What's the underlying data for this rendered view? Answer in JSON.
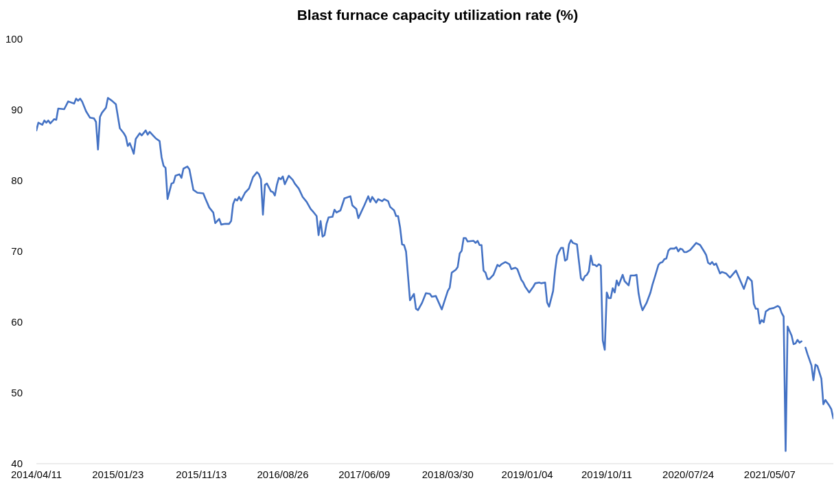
{
  "chart_data": {
    "type": "line",
    "title": "Blast furnace capacity utilization rate (%)",
    "x": [
      "2014-04-11",
      "2014-04-18",
      "2014-05-02",
      "2014-05-09",
      "2014-05-16",
      "2014-05-23",
      "2014-05-30",
      "2014-06-13",
      "2014-06-20",
      "2014-06-27",
      "2014-07-18",
      "2014-08-01",
      "2014-08-22",
      "2014-08-29",
      "2014-09-05",
      "2014-09-12",
      "2014-09-19",
      "2014-10-03",
      "2014-10-17",
      "2014-10-31",
      "2014-11-07",
      "2014-11-14",
      "2014-11-21",
      "2014-11-28",
      "2014-12-12",
      "2014-12-19",
      "2015-01-02",
      "2015-01-16",
      "2015-01-30",
      "2015-02-13",
      "2015-02-20",
      "2015-02-27",
      "2015-03-06",
      "2015-03-13",
      "2015-03-20",
      "2015-03-27",
      "2015-04-10",
      "2015-04-17",
      "2015-05-01",
      "2015-05-08",
      "2015-05-15",
      "2015-05-29",
      "2015-06-05",
      "2015-06-19",
      "2015-06-26",
      "2015-07-03",
      "2015-07-10",
      "2015-07-17",
      "2015-07-31",
      "2015-08-07",
      "2015-08-14",
      "2015-08-28",
      "2015-09-04",
      "2015-09-11",
      "2015-09-25",
      "2015-10-02",
      "2015-10-16",
      "2015-10-30",
      "2015-11-20",
      "2015-11-27",
      "2015-12-11",
      "2015-12-25",
      "2016-01-01",
      "2016-01-15",
      "2016-01-22",
      "2016-02-05",
      "2016-02-19",
      "2016-02-26",
      "2016-03-04",
      "2016-03-11",
      "2016-03-18",
      "2016-03-25",
      "2016-04-01",
      "2016-04-15",
      "2016-04-29",
      "2016-05-13",
      "2016-05-27",
      "2016-06-03",
      "2016-06-10",
      "2016-06-17",
      "2016-06-24",
      "2016-07-01",
      "2016-07-15",
      "2016-07-22",
      "2016-07-29",
      "2016-08-05",
      "2016-08-12",
      "2016-08-19",
      "2016-08-26",
      "2016-09-02",
      "2016-09-16",
      "2016-09-30",
      "2016-10-07",
      "2016-10-21",
      "2016-11-04",
      "2016-11-18",
      "2016-12-02",
      "2016-12-09",
      "2016-12-23",
      "2016-12-30",
      "2017-01-06",
      "2017-01-13",
      "2017-01-20",
      "2017-01-27",
      "2017-02-03",
      "2017-02-17",
      "2017-02-24",
      "2017-03-03",
      "2017-03-17",
      "2017-03-31",
      "2017-04-21",
      "2017-04-28",
      "2017-05-12",
      "2017-05-19",
      "2017-06-09",
      "2017-06-23",
      "2017-06-30",
      "2017-07-07",
      "2017-07-21",
      "2017-07-28",
      "2017-08-11",
      "2017-08-18",
      "2017-09-01",
      "2017-09-08",
      "2017-09-22",
      "2017-09-29",
      "2017-10-06",
      "2017-10-13",
      "2017-10-20",
      "2017-10-27",
      "2017-11-03",
      "2017-11-17",
      "2017-12-01",
      "2017-12-08",
      "2017-12-15",
      "2017-12-29",
      "2018-01-12",
      "2018-01-26",
      "2018-02-02",
      "2018-02-16",
      "2018-03-09",
      "2018-03-30",
      "2018-04-06",
      "2018-04-13",
      "2018-04-27",
      "2018-05-04",
      "2018-05-11",
      "2018-05-18",
      "2018-05-25",
      "2018-06-01",
      "2018-06-08",
      "2018-06-29",
      "2018-07-06",
      "2018-07-13",
      "2018-07-20",
      "2018-07-27",
      "2018-08-03",
      "2018-08-10",
      "2018-08-17",
      "2018-08-24",
      "2018-09-07",
      "2018-09-21",
      "2018-09-28",
      "2018-10-05",
      "2018-10-19",
      "2018-11-02",
      "2018-11-09",
      "2018-11-23",
      "2018-11-30",
      "2018-12-14",
      "2018-12-21",
      "2018-12-28",
      "2019-01-11",
      "2019-01-25",
      "2019-02-01",
      "2019-02-15",
      "2019-02-22",
      "2019-03-08",
      "2019-03-15",
      "2019-03-22",
      "2019-04-05",
      "2019-04-12",
      "2019-04-19",
      "2019-04-26",
      "2019-05-03",
      "2019-05-10",
      "2019-05-17",
      "2019-05-24",
      "2019-05-31",
      "2019-06-07",
      "2019-06-14",
      "2019-06-28",
      "2019-07-12",
      "2019-07-19",
      "2019-07-26",
      "2019-08-02",
      "2019-08-09",
      "2019-08-16",
      "2019-08-23",
      "2019-08-30",
      "2019-09-06",
      "2019-09-13",
      "2019-09-20",
      "2019-09-27",
      "2019-10-04",
      "2019-10-11",
      "2019-10-18",
      "2019-10-25",
      "2019-11-01",
      "2019-11-08",
      "2019-11-15",
      "2019-11-22",
      "2019-12-06",
      "2019-12-13",
      "2019-12-27",
      "2020-01-03",
      "2020-01-17",
      "2020-01-24",
      "2020-01-31",
      "2020-02-07",
      "2020-02-14",
      "2020-02-28",
      "2020-03-13",
      "2020-03-20",
      "2020-03-27",
      "2020-04-10",
      "2020-04-17",
      "2020-04-24",
      "2020-05-01",
      "2020-05-08",
      "2020-05-15",
      "2020-05-22",
      "2020-06-05",
      "2020-06-12",
      "2020-06-19",
      "2020-06-26",
      "2020-07-03",
      "2020-07-10",
      "2020-07-17",
      "2020-07-31",
      "2020-08-21",
      "2020-09-04",
      "2020-09-18",
      "2020-09-25",
      "2020-10-02",
      "2020-10-09",
      "2020-10-16",
      "2020-10-23",
      "2020-10-30",
      "2020-11-13",
      "2020-11-20",
      "2020-12-04",
      "2020-12-18",
      "2021-01-08",
      "2021-02-05",
      "2021-02-19",
      "2021-03-05",
      "2021-03-12",
      "2021-03-19",
      "2021-03-26",
      "2021-04-02",
      "2021-04-09",
      "2021-04-16",
      "2021-04-23",
      "2021-05-07",
      "2021-05-21",
      "2021-06-04",
      "2021-06-11",
      "2021-06-18",
      "2021-06-25",
      "2021-07-02",
      "2021-07-09",
      "2021-07-23",
      "2021-07-30",
      "2021-08-06",
      "2021-08-13",
      "2021-08-20",
      "2021-08-27",
      "2021-09-03",
      "2021-09-10",
      "2021-09-17",
      "2021-10-01",
      "2021-10-08",
      "2021-10-15",
      "2021-10-22",
      "2021-11-05",
      "2021-11-12",
      "2021-11-19",
      "2021-12-03",
      "2021-12-10",
      "2021-12-17"
    ],
    "series": [
      {
        "color": "#4472c4",
        "values": [
          87.1,
          88.2,
          87.9,
          88.5,
          88.2,
          88.5,
          88.1,
          88.7,
          88.6,
          90.2,
          90.1,
          91.2,
          90.9,
          91.6,
          91.3,
          91.6,
          91.2,
          89.8,
          88.9,
          88.8,
          88.3,
          84.4,
          89.0,
          89.6,
          90.3,
          91.7,
          91.3,
          90.8,
          87.4,
          86.7,
          86.2,
          84.9,
          85.3,
          84.6,
          83.8,
          85.9,
          86.7,
          86.4,
          87.1,
          86.5,
          86.9,
          86.3,
          86.0,
          85.6,
          83.3,
          82.1,
          81.8,
          77.4,
          79.6,
          79.7,
          80.7,
          80.9,
          80.4,
          81.7,
          82.0,
          81.6,
          78.7,
          78.3,
          78.2,
          77.5,
          76.2,
          75.5,
          74.0,
          74.6,
          73.8,
          73.9,
          73.9,
          74.3,
          76.7,
          77.4,
          77.2,
          77.7,
          77.2,
          78.3,
          78.9,
          80.5,
          81.2,
          80.9,
          80.2,
          75.2,
          79.4,
          79.6,
          78.5,
          78.4,
          77.9,
          79.4,
          80.4,
          80.2,
          80.6,
          79.5,
          80.7,
          80.1,
          79.6,
          78.9,
          77.7,
          77.0,
          76.0,
          75.7,
          75.0,
          72.3,
          74.3,
          72.1,
          72.3,
          73.9,
          74.8,
          74.9,
          75.9,
          75.5,
          75.8,
          77.5,
          77.8,
          76.5,
          76.0,
          74.7,
          76.5,
          77.8,
          77.0,
          77.7,
          76.9,
          77.4,
          77.1,
          77.4,
          77.1,
          76.3,
          75.8,
          75.0,
          75.0,
          73.4,
          71.0,
          70.9,
          70.0,
          63.1,
          64.0,
          61.9,
          61.7,
          62.7,
          64.1,
          64.0,
          63.6,
          63.7,
          61.8,
          64.4,
          64.9,
          67.0,
          67.4,
          67.8,
          69.7,
          70.1,
          71.9,
          71.9,
          71.4,
          71.5,
          71.2,
          71.5,
          70.9,
          70.9,
          67.3,
          67.0,
          66.1,
          66.1,
          66.7,
          68.1,
          67.9,
          68.2,
          68.5,
          68.2,
          67.5,
          67.7,
          67.5,
          66.0,
          65.6,
          65.0,
          64.2,
          65.0,
          65.5,
          65.6,
          65.5,
          65.6,
          62.8,
          62.2,
          64.4,
          67.3,
          69.4,
          70.0,
          70.5,
          70.5,
          68.7,
          68.9,
          71.0,
          71.6,
          71.2,
          71.0,
          66.2,
          65.9,
          66.5,
          66.7,
          67.2,
          69.4,
          68.1,
          68.1,
          67.9,
          68.2,
          68.0,
          57.4,
          56.1,
          64.2,
          63.4,
          63.4,
          64.8,
          64.2,
          65.9,
          65.2,
          66.7,
          65.8,
          65.2,
          66.6,
          66.6,
          66.7,
          64.1,
          62.6,
          61.7,
          62.7,
          64.2,
          65.3,
          66.2,
          68.1,
          68.4,
          68.5,
          68.9,
          69.0,
          70.1,
          70.4,
          70.4,
          70.6,
          70.0,
          70.4,
          70.3,
          69.9,
          69.9,
          70.2,
          71.2,
          70.9,
          70.0,
          69.5,
          68.4,
          68.2,
          68.5,
          68.1,
          68.3,
          66.9,
          67.1,
          66.9,
          66.3,
          67.3,
          64.7,
          66.4,
          65.8,
          62.6,
          61.9,
          61.9,
          59.8,
          60.3,
          60.0,
          61.5,
          61.9,
          62.0,
          62.3,
          62.1,
          61.3,
          60.8,
          41.8,
          59.4,
          58.1,
          56.9,
          57.0,
          57.5,
          57.1,
          57.3,
          null,
          56.4,
          55.5,
          53.9,
          51.8,
          54.0,
          53.8,
          52.0,
          48.4,
          49.0,
          48.2,
          47.7,
          46.4
        ]
      }
    ],
    "xlim": [
      "2014-04-11",
      "2021-12-17"
    ],
    "xticks": [
      {
        "value": "2014-04-11",
        "label": "2014/04/11"
      },
      {
        "value": "2015-01-23",
        "label": "2015/01/23"
      },
      {
        "value": "2015-11-13",
        "label": "2015/11/13"
      },
      {
        "value": "2016-08-26",
        "label": "2016/08/26"
      },
      {
        "value": "2017-06-09",
        "label": "2017/06/09"
      },
      {
        "value": "2018-03-30",
        "label": "2018/03/30"
      },
      {
        "value": "2019-01-04",
        "label": "2019/01/04"
      },
      {
        "value": "2019-10-11",
        "label": "2019/10/11"
      },
      {
        "value": "2020-07-24",
        "label": "2020/07/24"
      },
      {
        "value": "2021-05-07",
        "label": "2021/05/07"
      }
    ],
    "ylim": [
      40,
      100
    ],
    "yticks": [
      40,
      50,
      60,
      70,
      80,
      90,
      100
    ],
    "grid": false,
    "legend": false,
    "marker": "none",
    "line_style": "solid"
  }
}
